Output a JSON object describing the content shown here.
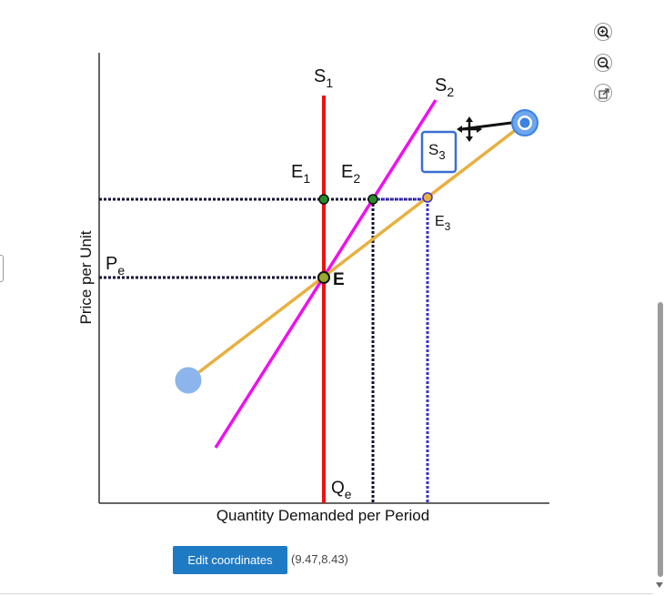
{
  "graph": {
    "y_axis_label": "Price per Unit",
    "x_axis_label": "Quantity Demanded per Period",
    "curves": {
      "s1": {
        "name": "S",
        "sub": "1",
        "color": "#ee1111"
      },
      "s2": {
        "name": "S",
        "sub": "2",
        "color": "#ee10ee"
      },
      "s3": {
        "name": "S",
        "sub": "3",
        "color": "#e8b040",
        "label_color": "#3a6fd0"
      }
    },
    "points": {
      "e": {
        "name": "E"
      },
      "e1": {
        "name": "E",
        "sub": "1"
      },
      "e2": {
        "name": "E",
        "sub": "2"
      },
      "e3": {
        "name": "E",
        "sub": "3"
      }
    },
    "pe_label": {
      "name": "P",
      "sub": "e"
    },
    "qe_label": {
      "name": "Q",
      "sub": "e"
    },
    "colors": {
      "guide_dark": "#111133",
      "guide_blue": "#3d2fd0",
      "point_fill": "#2a8a2a",
      "handle_fill": "#5f9be6"
    }
  },
  "controls": {
    "zoom_in": "zoom-in-icon",
    "zoom_out": "zoom-out-icon",
    "popout": "external-link-icon",
    "edit_button_label": "Edit coordinates",
    "coordinate_readout": "(9.47,8.43)"
  }
}
